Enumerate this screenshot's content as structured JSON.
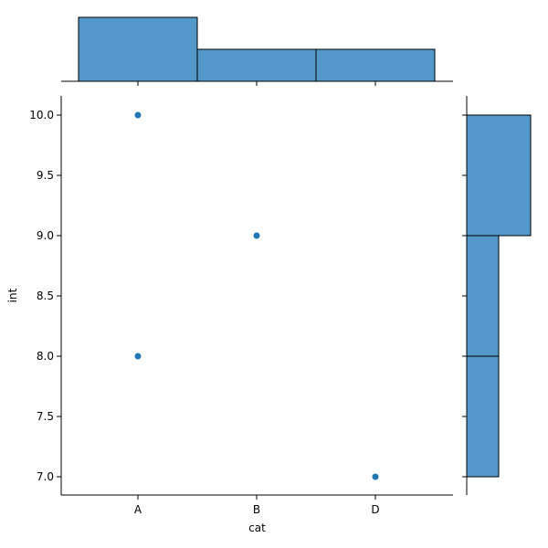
{
  "chart_data": {
    "type": "scatter",
    "title": "",
    "xlabel": "cat",
    "ylabel": "int",
    "categories": [
      "A",
      "B",
      "D"
    ],
    "points": [
      {
        "x": "A",
        "y": 10.0
      },
      {
        "x": "B",
        "y": 9.0
      },
      {
        "x": "A",
        "y": 8.0
      },
      {
        "x": "D",
        "y": 7.0
      }
    ],
    "ylim": [
      6.85,
      10.15
    ],
    "yticks": [
      7.0,
      7.5,
      8.0,
      8.5,
      9.0,
      9.5,
      10.0
    ],
    "ytick_labels": [
      "7.0",
      "7.5",
      "8.0",
      "8.5",
      "9.0",
      "9.5",
      "10.0"
    ],
    "grid": false,
    "marginal_x": {
      "type": "bar",
      "categories": [
        "A",
        "B",
        "D"
      ],
      "counts": [
        2,
        1,
        1
      ]
    },
    "marginal_y": {
      "type": "histogram",
      "bins": [
        {
          "start": 7.0,
          "end": 8.0,
          "count": 1
        },
        {
          "start": 8.0,
          "end": 9.0,
          "count": 1
        },
        {
          "start": 9.0,
          "end": 10.0,
          "count": 2
        }
      ]
    },
    "colors": {
      "point": "#1f77b4",
      "bar_fill": "#5299c9",
      "bar_edge": "#000000"
    }
  }
}
